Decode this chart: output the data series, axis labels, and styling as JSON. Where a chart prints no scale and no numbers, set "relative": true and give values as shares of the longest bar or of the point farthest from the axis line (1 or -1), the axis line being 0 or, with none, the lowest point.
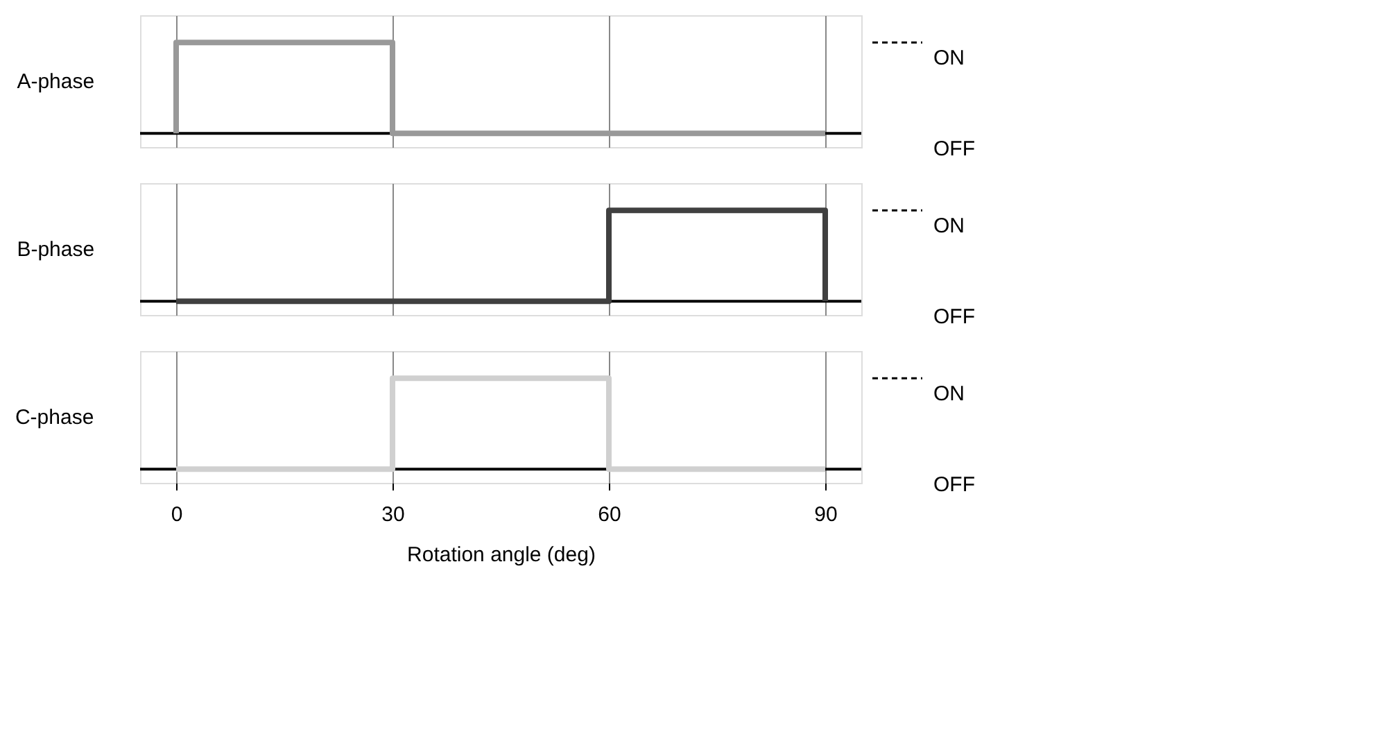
{
  "chart_data": [
    {
      "type": "step",
      "ylabel": "A-phase",
      "relative": true,
      "x": [
        0,
        0,
        30,
        90
      ],
      "series": [
        {
          "color": "#999999",
          "values": [
            0,
            1,
            0,
            0
          ]
        }
      ],
      "xlim": [
        -5,
        95
      ],
      "xticks": [
        0,
        30,
        60,
        90
      ],
      "annotations": [
        "ON",
        "OFF"
      ],
      "grid": "x",
      "tick_labels": false
    },
    {
      "type": "step",
      "ylabel": "B-phase",
      "relative": true,
      "x": [
        0,
        30,
        60,
        90,
        90
      ],
      "series": [
        {
          "color": "#404040",
          "values": [
            0,
            0,
            1,
            1,
            0
          ]
        }
      ],
      "xlim": [
        -5,
        95
      ],
      "xticks": [
        0,
        30,
        60,
        90
      ],
      "annotations": [
        "ON",
        "OFF"
      ],
      "grid": "x",
      "tick_labels": false
    },
    {
      "type": "step",
      "ylabel": "C-phase",
      "xlabel": "Rotation angle (deg)",
      "relative": true,
      "x": [
        0,
        30,
        60,
        90
      ],
      "series": [
        {
          "color": "#d0d0d0",
          "values": [
            0,
            1,
            0,
            0
          ]
        }
      ],
      "xlim": [
        -5,
        95
      ],
      "xticks": [
        0,
        30,
        60,
        90
      ],
      "annotations": [
        "ON",
        "OFF"
      ],
      "grid": "x",
      "tick_labels": "x"
    }
  ]
}
